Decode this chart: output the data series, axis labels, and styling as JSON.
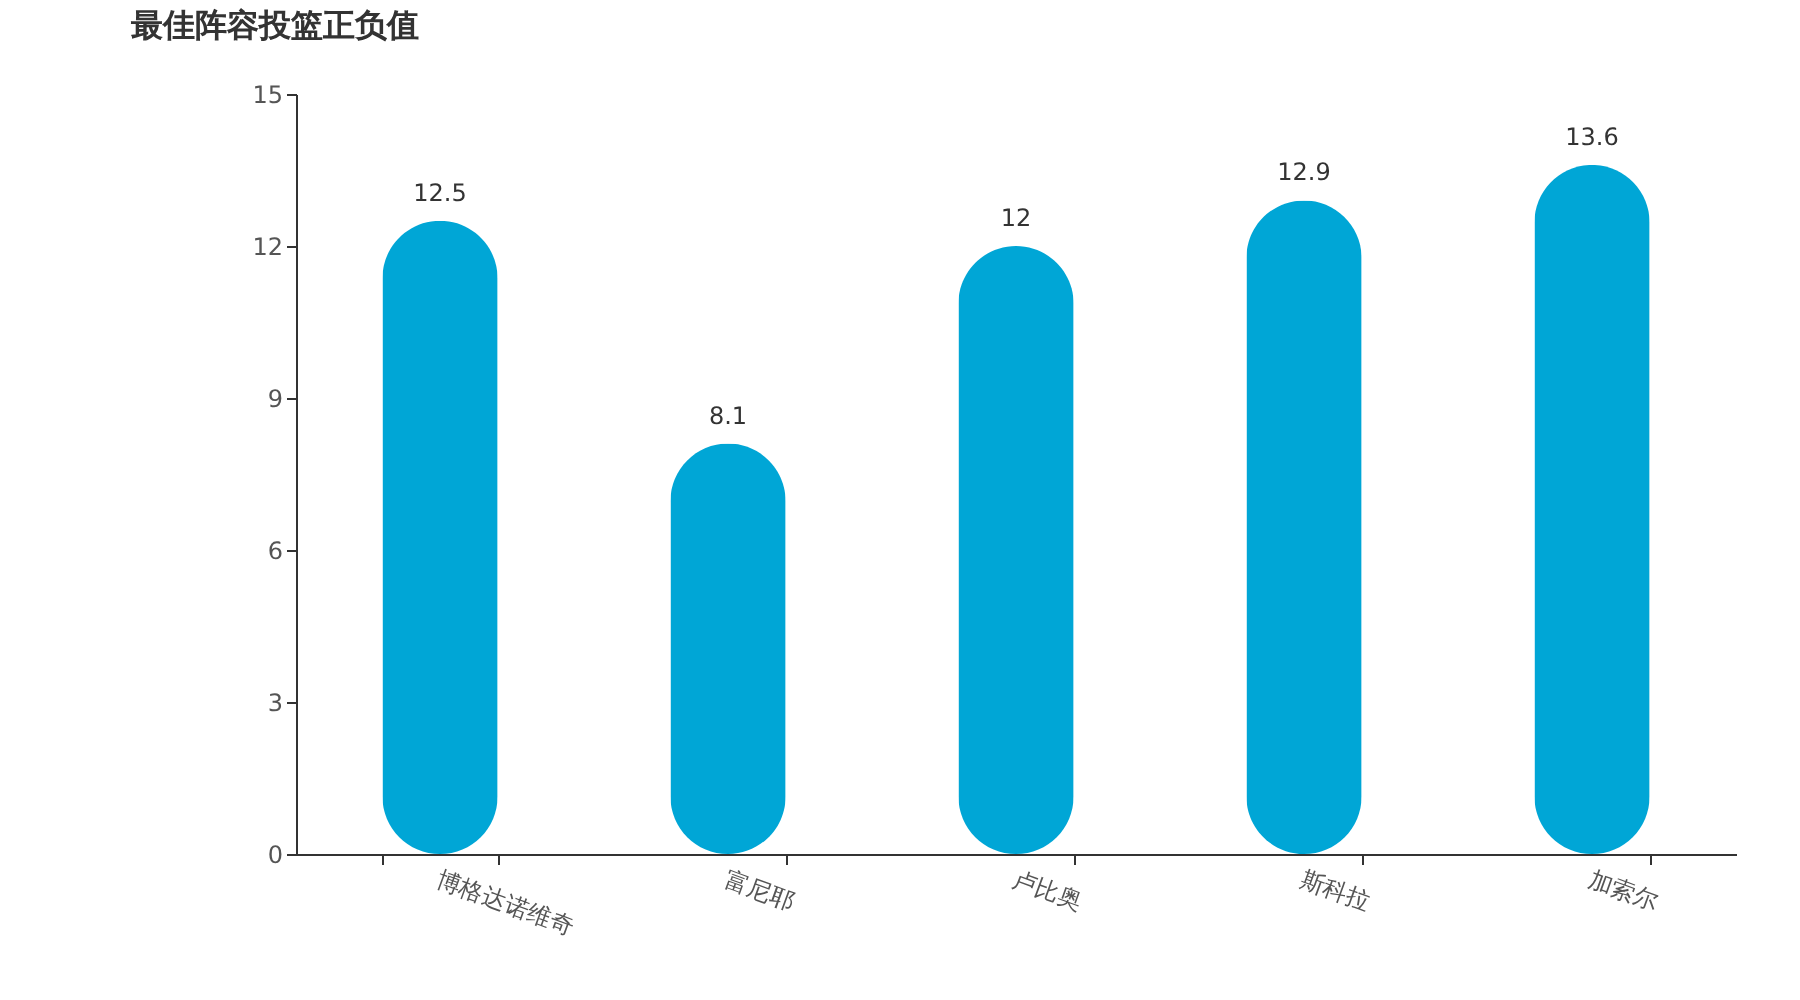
{
  "chart_data": {
    "type": "bar",
    "title": "最佳阵容投篮正负值",
    "categories": [
      "博格达诺维奇",
      "富尼耶",
      "卢比奥",
      "斯科拉",
      "加索尔"
    ],
    "values": [
      12.5,
      8.1,
      12,
      12.9,
      13.6
    ],
    "color": "#00a6d6",
    "ylim": [
      0,
      15
    ],
    "yticks": [
      0,
      3,
      6,
      9,
      12,
      15
    ],
    "grid": false,
    "data_labels": true
  }
}
